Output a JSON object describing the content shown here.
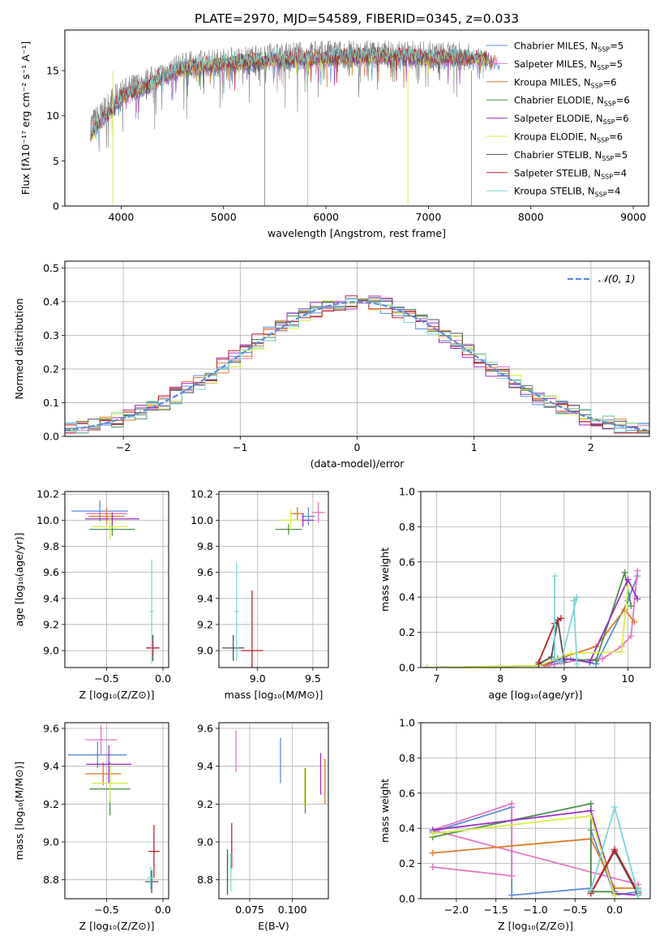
{
  "title": "PLATE=2970, MJD=54589, FIBERID=0345, z=0.033",
  "colors": {
    "Chabrier MILES": "#5b8bd9",
    "Salpeter MILES": "#e377c2",
    "Kroupa MILES": "#dd7a2a",
    "Chabrier ELODIE": "#4f8f4f",
    "Salpeter ELODIE": "#9b30c8",
    "Kroupa ELODIE": "#d8ec4a",
    "Chabrier STELIB": "#505050",
    "Salpeter STELIB": "#c0202a",
    "Kroupa STELIB": "#7dd6d6",
    "data": "#808080",
    "normal": "#5b8bd9"
  },
  "chart_data": [
    {
      "id": "spectrum",
      "type": "line",
      "xlabel": "wavelength [Angstrom, rest frame]",
      "ylabel": "Flux [fλ10⁻¹⁷ erg cm⁻² s⁻¹ A⁻¹]",
      "xlim": [
        3450,
        9150
      ],
      "ylim": [
        0,
        19.5
      ],
      "xticks": [
        4000,
        5000,
        6000,
        7000,
        8000,
        9000
      ],
      "yticks": [
        0,
        5,
        10,
        15
      ],
      "grid": false,
      "legend_position": "top-right",
      "data_range": [
        3700,
        7400
      ],
      "data_continuum": [
        [
          3700,
          9
        ],
        [
          3800,
          10
        ],
        [
          3900,
          11.5
        ],
        [
          4000,
          12.5
        ],
        [
          4200,
          13.5
        ],
        [
          4400,
          14.5
        ],
        [
          4600,
          15.5
        ],
        [
          5000,
          16
        ],
        [
          5500,
          16.5
        ],
        [
          6000,
          16.8
        ],
        [
          6500,
          16.8
        ],
        [
          7000,
          16.7
        ],
        [
          7400,
          16.5
        ]
      ],
      "model_continuum": [
        [
          3700,
          8
        ],
        [
          3800,
          9.5
        ],
        [
          3900,
          10.5
        ],
        [
          4000,
          12
        ],
        [
          4200,
          13
        ],
        [
          4400,
          14.3
        ],
        [
          4600,
          15.3
        ],
        [
          5000,
          15.8
        ],
        [
          5500,
          16.2
        ],
        [
          6000,
          16.4
        ],
        [
          6500,
          16.6
        ],
        [
          7000,
          16.4
        ],
        [
          7500,
          16.4
        ],
        [
          7700,
          16
        ]
      ],
      "spikes": [
        {
          "x": 3920,
          "y": 0
        },
        {
          "x": 5400,
          "y": 0
        },
        {
          "x": 5820,
          "y": 0
        },
        {
          "x": 6800,
          "y": 0
        },
        {
          "x": 7420,
          "y": 0
        }
      ],
      "legend": [
        {
          "model": "Chabrier MILES",
          "label": "Chabrier MILES, N",
          "n": "=5"
        },
        {
          "model": "Salpeter MILES",
          "label": "Salpeter MILES, N",
          "n": "=5"
        },
        {
          "model": "Kroupa MILES",
          "label": "Kroupa MILES, N",
          "n": "=6"
        },
        {
          "model": "Chabrier ELODIE",
          "label": "Chabrier ELODIE, N",
          "n": "=6"
        },
        {
          "model": "Salpeter ELODIE",
          "label": "Salpeter ELODIE, N",
          "n": "=6"
        },
        {
          "model": "Kroupa ELODIE",
          "label": "Kroupa ELODIE, N",
          "n": "=6"
        },
        {
          "model": "Chabrier STELIB",
          "label": "Chabrier STELIB, N",
          "n": "=5"
        },
        {
          "model": "Salpeter STELIB",
          "label": "Salpeter STELIB, N",
          "n": "=4"
        },
        {
          "model": "Kroupa STELIB",
          "label": "Kroupa STELIB, N",
          "n": "=4"
        }
      ]
    },
    {
      "id": "residuals",
      "type": "line",
      "xlabel": "(data-model)/error",
      "ylabel": "Normed distribution",
      "xlim": [
        -2.5,
        2.5
      ],
      "ylim": [
        0,
        0.52
      ],
      "xticks": [
        -2,
        -1,
        0,
        1,
        2
      ],
      "yticks": [
        0.0,
        0.1,
        0.2,
        0.3,
        0.4,
        0.5
      ],
      "grid": true,
      "legend_position": "top-right",
      "legend": "𝒩(0, 1)",
      "bin_width": 0.1,
      "normal_mean": 0,
      "normal_sigma": 1,
      "histogram_offsets": {
        "Chabrier MILES": 0.02,
        "Salpeter MILES": -0.025,
        "Kroupa MILES": 0.012,
        "Chabrier ELODIE": -0.01,
        "Salpeter ELODIE": 0.028,
        "Kroupa ELODIE": -0.02,
        "Chabrier STELIB": -0.03,
        "Salpeter STELIB": 0.015,
        "Kroupa STELIB": 0.005
      }
    },
    {
      "id": "age-vs-Z",
      "type": "scatter",
      "xlabel": "Z [log₁₀(Z/Z⊙)]",
      "ylabel": "age  [log₁₀(age/yr)]",
      "xlim": [
        -0.87,
        0.05
      ],
      "ylim": [
        8.87,
        10.22
      ],
      "xticks": [
        -0.5,
        0.0
      ],
      "yticks": [
        9.0,
        9.2,
        9.4,
        9.6,
        9.8,
        10.0,
        10.2
      ],
      "grid": true,
      "points": [
        {
          "model": "Chabrier MILES",
          "x": -0.56,
          "y": 10.07,
          "xerr": 0.25,
          "yerr": 0.08
        },
        {
          "model": "Salpeter MILES",
          "x": -0.5,
          "y": 10.05,
          "xerr": 0.18,
          "yerr": 0.05
        },
        {
          "model": "Kroupa MILES",
          "x": -0.5,
          "y": 10.03,
          "xerr": 0.16,
          "yerr": 0.06
        },
        {
          "model": "Chabrier ELODIE",
          "x": -0.45,
          "y": 9.93,
          "xerr": 0.2,
          "yerr": 0.05
        },
        {
          "model": "Salpeter ELODIE",
          "x": -0.45,
          "y": 10.01,
          "xerr": 0.24,
          "yerr": 0.05
        },
        {
          "model": "Kroupa ELODIE",
          "x": -0.47,
          "y": 9.95,
          "xerr": 0.16,
          "yerr": 0.1
        },
        {
          "model": "Chabrier STELIB",
          "x": -0.09,
          "y": 9.02,
          "xerr": 0.06,
          "yerr": 0.1
        },
        {
          "model": "Salpeter STELIB",
          "x": -0.09,
          "y": 9.02,
          "xerr": 0.05,
          "yerr": 0.06
        },
        {
          "model": "Kroupa STELIB",
          "x": -0.1,
          "y": 9.3,
          "xerr": 0.02,
          "yerr": 0.4
        }
      ]
    },
    {
      "id": "age-vs-mass",
      "type": "scatter",
      "xlabel": "mass [log₁₀(M/M⊙)]",
      "ylabel": "",
      "xlim": [
        8.65,
        9.64
      ],
      "ylim": [
        8.87,
        10.22
      ],
      "xticks": [
        9.0,
        9.5
      ],
      "yticks": [
        9.0,
        9.2,
        9.4,
        9.6,
        9.8,
        10.0,
        10.2
      ],
      "grid": true,
      "points": [
        {
          "model": "Chabrier MILES",
          "x": 9.46,
          "y": 10.03,
          "xerr": 0.06,
          "yerr": 0.07
        },
        {
          "model": "Salpeter MILES",
          "x": 9.55,
          "y": 10.06,
          "xerr": 0.06,
          "yerr": 0.08
        },
        {
          "model": "Kroupa MILES",
          "x": 9.36,
          "y": 10.05,
          "xerr": 0.06,
          "yerr": 0.05
        },
        {
          "model": "Chabrier ELODIE",
          "x": 9.28,
          "y": 9.93,
          "xerr": 0.12,
          "yerr": 0.04
        },
        {
          "model": "Salpeter ELODIE",
          "x": 9.41,
          "y": 10.0,
          "xerr": 0.1,
          "yerr": 0.05
        },
        {
          "model": "Kroupa ELODIE",
          "x": 9.3,
          "y": 10.0,
          "xerr": 0.1,
          "yerr": 0.08
        },
        {
          "model": "Chabrier STELIB",
          "x": 8.78,
          "y": 9.02,
          "xerr": 0.1,
          "yerr": 0.1
        },
        {
          "model": "Salpeter STELIB",
          "x": 8.95,
          "y": 9.0,
          "xerr": 0.1,
          "yerr": 0.46
        },
        {
          "model": "Kroupa STELIB",
          "x": 8.81,
          "y": 9.3,
          "xerr": 0.02,
          "yerr": 0.38
        }
      ]
    },
    {
      "id": "mass-weight-vs-age",
      "type": "line",
      "xlabel": "age  [log₁₀(age/yr)]",
      "ylabel": "mass weight",
      "xlim": [
        6.75,
        10.35
      ],
      "ylim": [
        0,
        1.0
      ],
      "xticks": [
        7,
        8,
        9,
        10
      ],
      "yticks": [
        0.0,
        0.2,
        0.4,
        0.6,
        0.8,
        1.0
      ],
      "grid": true,
      "series": [
        {
          "model": "Chabrier MILES",
          "x": [
            8.7,
            8.85,
            9.1,
            9.5,
            10.0,
            10.15
          ],
          "y": [
            0.01,
            0.02,
            0.05,
            0.02,
            0.38,
            0.52
          ]
        },
        {
          "model": "Salpeter MILES",
          "x": [
            8.75,
            9.2,
            9.6,
            9.9,
            10.05,
            10.15
          ],
          "y": [
            0.01,
            0.04,
            0.05,
            0.12,
            0.18,
            0.55
          ]
        },
        {
          "model": "Kroupa MILES",
          "x": [
            8.7,
            9.0,
            9.5,
            9.95,
            10.1
          ],
          "y": [
            0.01,
            0.06,
            0.12,
            0.33,
            0.26
          ]
        },
        {
          "model": "Chabrier ELODIE",
          "x": [
            6.85,
            8.6,
            8.9,
            9.5,
            9.95,
            10.05
          ],
          "y": [
            0.0,
            0.01,
            0.05,
            0.04,
            0.54,
            0.35
          ]
        },
        {
          "model": "Salpeter ELODIE",
          "x": [
            6.85,
            8.6,
            9.0,
            9.4,
            10.0,
            10.15
          ],
          "y": [
            0.0,
            0.01,
            0.05,
            0.03,
            0.5,
            0.39
          ]
        },
        {
          "model": "Kroupa ELODIE",
          "x": [
            6.85,
            8.6,
            9.1,
            9.9,
            10.0
          ],
          "y": [
            0.0,
            0.01,
            0.08,
            0.09,
            0.46
          ]
        },
        {
          "model": "Chabrier STELIB",
          "x": [
            8.6,
            8.8,
            8.9,
            9.0
          ],
          "y": [
            0.02,
            0.06,
            0.27,
            0.03
          ]
        },
        {
          "model": "Salpeter STELIB",
          "x": [
            8.6,
            8.85,
            8.95
          ],
          "y": [
            0.03,
            0.25,
            0.28
          ]
        },
        {
          "model": "Kroupa STELIB",
          "x": [
            8.85,
            8.85,
            8.95,
            9.2,
            9.15,
            9.2
          ],
          "y": [
            0.52,
            0.05,
            0.03,
            0.4,
            0.38,
            0.02
          ]
        }
      ]
    },
    {
      "id": "mass-vs-Z",
      "type": "scatter",
      "xlabel": "Z [log₁₀(Z/Z⊙)]",
      "ylabel": "mass [log₁₀(M/M⊙)]",
      "xlim": [
        -0.87,
        0.05
      ],
      "ylim": [
        8.7,
        9.63
      ],
      "xticks": [
        -0.5,
        0.0
      ],
      "yticks": [
        8.8,
        9.0,
        9.2,
        9.4,
        9.6
      ],
      "grid": true,
      "points": [
        {
          "model": "Chabrier MILES",
          "x": -0.58,
          "y": 9.46,
          "xerr": 0.26,
          "yerr": 0.07
        },
        {
          "model": "Salpeter MILES",
          "x": -0.55,
          "y": 9.54,
          "xerr": 0.14,
          "yerr": 0.08
        },
        {
          "model": "Kroupa MILES",
          "x": -0.53,
          "y": 9.36,
          "xerr": 0.16,
          "yerr": 0.06
        },
        {
          "model": "Chabrier ELODIE",
          "x": -0.47,
          "y": 9.28,
          "xerr": 0.18,
          "yerr": 0.14
        },
        {
          "model": "Salpeter ELODIE",
          "x": -0.48,
          "y": 9.41,
          "xerr": 0.2,
          "yerr": 0.1
        },
        {
          "model": "Kroupa ELODIE",
          "x": -0.47,
          "y": 9.31,
          "xerr": 0.16,
          "yerr": 0.1
        },
        {
          "model": "Chabrier STELIB",
          "x": -0.1,
          "y": 8.79,
          "xerr": 0.06,
          "yerr": 0.06
        },
        {
          "model": "Salpeter STELIB",
          "x": -0.08,
          "y": 8.95,
          "xerr": 0.05,
          "yerr": 0.14
        },
        {
          "model": "Kroupa STELIB",
          "x": -0.11,
          "y": 8.81,
          "xerr": 0.03,
          "yerr": 0.06
        }
      ]
    },
    {
      "id": "mass-vs-EBV",
      "type": "scatter",
      "xlabel": "E(B-V)",
      "ylabel": "",
      "xlim": [
        0.057,
        0.121
      ],
      "ylim": [
        8.7,
        9.63
      ],
      "xticks": [
        0.075,
        0.1
      ],
      "yticks": [
        8.8,
        9.0,
        9.2,
        9.4,
        9.6
      ],
      "grid": true,
      "points": [
        {
          "model": "Chabrier MILES",
          "x": 0.093,
          "y": 9.43,
          "yerr": 0.12
        },
        {
          "model": "Salpeter MILES",
          "x": 0.067,
          "y": 9.48,
          "yerr": 0.11
        },
        {
          "model": "Kroupa MILES",
          "x": 0.119,
          "y": 9.32,
          "yerr": 0.12
        },
        {
          "model": "Chabrier ELODIE",
          "x": 0.1075,
          "y": 9.27,
          "yerr": 0.12
        },
        {
          "model": "Salpeter ELODIE",
          "x": 0.1165,
          "y": 9.36,
          "yerr": 0.11
        },
        {
          "model": "Kroupa ELODIE",
          "x": 0.107,
          "y": 9.29,
          "yerr": 0.1
        },
        {
          "model": "Chabrier STELIB",
          "x": 0.062,
          "y": 8.84,
          "yerr": 0.12
        },
        {
          "model": "Salpeter STELIB",
          "x": 0.0645,
          "y": 8.98,
          "yerr": 0.12
        },
        {
          "model": "Kroupa STELIB",
          "x": 0.064,
          "y": 8.84,
          "yerr": 0.1
        }
      ]
    },
    {
      "id": "mass-weight-vs-Z",
      "type": "line",
      "xlabel": "Z [log₁₀(Z/Z⊙)]",
      "ylabel": "mass weight",
      "xlim": [
        -2.45,
        0.45
      ],
      "ylim": [
        0,
        1.0
      ],
      "xticks": [
        -2.0,
        -1.5,
        -1.0,
        -0.5,
        0.0
      ],
      "yticks": [
        0.0,
        0.2,
        0.4,
        0.6,
        0.8,
        1.0
      ],
      "grid": true,
      "series": [
        {
          "model": "Chabrier MILES",
          "x": [
            -2.3,
            -1.3,
            -1.3,
            -0.3,
            -0.3,
            0.0,
            0.3
          ],
          "y": [
            0.38,
            0.52,
            0.02,
            0.06,
            0.39,
            0.02,
            0.04
          ]
        },
        {
          "model": "Salpeter MILES",
          "x": [
            -2.3,
            -1.3,
            -1.3,
            -2.3,
            0.3
          ],
          "y": [
            0.18,
            0.13,
            0.54,
            0.39,
            0.08
          ]
        },
        {
          "model": "Kroupa MILES",
          "x": [
            -2.3,
            -0.3,
            0.0,
            0.3
          ],
          "y": [
            0.26,
            0.34,
            0.06,
            0.06
          ]
        },
        {
          "model": "Chabrier ELODIE",
          "x": [
            -2.3,
            -0.3,
            -0.3,
            0.0
          ],
          "y": [
            0.35,
            0.54,
            0.04,
            0.04
          ]
        },
        {
          "model": "Salpeter ELODIE",
          "x": [
            -2.3,
            -0.3,
            0.0,
            0.3
          ],
          "y": [
            0.39,
            0.5,
            0.03,
            0.02
          ]
        },
        {
          "model": "Kroupa ELODIE",
          "x": [
            -2.3,
            -0.3,
            0.0
          ],
          "y": [
            0.37,
            0.47,
            0.02
          ]
        },
        {
          "model": "Chabrier STELIB",
          "x": [
            -0.3,
            0.0,
            0.3
          ],
          "y": [
            0.03,
            0.27,
            0.02
          ]
        },
        {
          "model": "Salpeter STELIB",
          "x": [
            -0.3,
            0.0,
            0.3
          ],
          "y": [
            0.03,
            0.28,
            0.03
          ]
        },
        {
          "model": "Kroupa STELIB",
          "x": [
            -0.3,
            0.0,
            0.3,
            0.3
          ],
          "y": [
            0.05,
            0.52,
            0.02,
            0.05
          ]
        }
      ]
    }
  ]
}
